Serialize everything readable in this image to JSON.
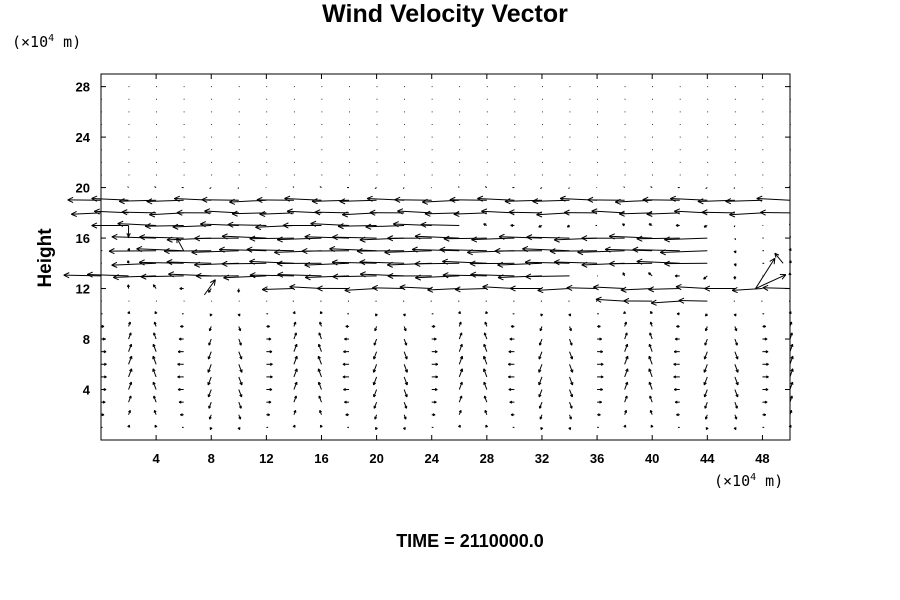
{
  "chart_data": {
    "type": "vector_field",
    "title": "Wind Velocity Vector",
    "ylabel": "Height",
    "y_unit_prefix": "(×10",
    "y_unit_exp": "4",
    "y_unit_suffix": " m)",
    "x_unit_prefix": "(×10",
    "x_unit_exp": "4",
    "x_unit_suffix": " m)",
    "xlim": [
      0,
      50
    ],
    "ylim": [
      0,
      29
    ],
    "xticks": [
      4,
      8,
      12,
      16,
      20,
      24,
      28,
      32,
      36,
      40,
      44,
      48
    ],
    "yticks": [
      4,
      8,
      12,
      16,
      20,
      24,
      28
    ],
    "grid": false,
    "arrow_color": "#000000",
    "bands": [
      {
        "y": 19,
        "x": [
          0,
          50
        ],
        "u": -2.6
      },
      {
        "y": 18,
        "x": [
          0,
          50
        ],
        "u": -2.3
      },
      {
        "y": 17,
        "x": [
          2,
          26
        ],
        "u": -2.6
      },
      {
        "y": 16,
        "x": [
          3,
          44
        ],
        "u": -3.0
      },
      {
        "y": 15,
        "x": [
          3,
          44
        ],
        "u": -3.2
      },
      {
        "y": 14,
        "x": [
          3,
          44
        ],
        "u": -3.0
      },
      {
        "y": 13,
        "x": [
          0,
          34
        ],
        "u": -3.0
      },
      {
        "y": 12,
        "x": [
          14,
          50
        ],
        "u": -2.2
      },
      {
        "y": 11,
        "x": [
          37,
          45
        ],
        "u": -2.0
      }
    ],
    "special_vectors": [
      {
        "x": 2,
        "y": 17,
        "u": 0,
        "v": -0.9
      },
      {
        "x": 47.5,
        "y": 12,
        "u": 1.4,
        "v": 2.4
      },
      {
        "x": 47.5,
        "y": 12,
        "u": 2.2,
        "v": 1.1
      },
      {
        "x": 49.5,
        "y": 14,
        "u": -0.6,
        "v": 0.8
      },
      {
        "x": 7.5,
        "y": 11.5,
        "u": 0.8,
        "v": 1.2
      },
      {
        "x": 6,
        "y": 15,
        "u": -0.5,
        "v": 1.0
      }
    ]
  },
  "footer_label": "TIME = 2110000.0"
}
